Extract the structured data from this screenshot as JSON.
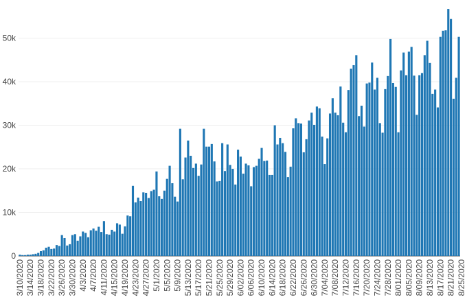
{
  "chart_data": {
    "type": "bar",
    "title": "",
    "xlabel": "",
    "ylabel": "",
    "start_date": "3/10/2020",
    "x_tick_labels": [
      "3/10/2020",
      "3/14/2020",
      "3/18/2020",
      "3/22/2020",
      "3/26/2020",
      "3/30/2020",
      "4/3/2020",
      "4/7/2020",
      "4/11/2020",
      "4/15/2020",
      "4/19/2020",
      "4/23/2020",
      "4/27/2020",
      "5/1/2020",
      "5/5/2020",
      "5/9/2020",
      "5/13/2020",
      "5/17/2020",
      "5/21/2020",
      "5/25/2020",
      "5/29/2020",
      "6/02/2020",
      "6/06/2020",
      "6/10/2020",
      "6/14/2020",
      "6/18/2020",
      "6/22/2020",
      "6/26/2020",
      "6/30/2020",
      "7/04/2020",
      "7/08/2020",
      "7/12/2020",
      "7/16/2020",
      "7/20/2020",
      "7/24/2020",
      "7/28/2020",
      "8/01/2020",
      "8/05/2020",
      "8/09/2020",
      "8/13/2020",
      "8/17/2020",
      "8/21/2020",
      "8/25/2020"
    ],
    "y_ticks": [
      0,
      10000,
      20000,
      30000,
      40000,
      50000
    ],
    "y_tick_labels": [
      "0",
      "10k",
      "20k",
      "30k",
      "40k",
      "50k"
    ],
    "ylim": [
      0,
      57500
    ],
    "grid": true,
    "series": [
      {
        "color": "#1f77b4",
        "values": [
          300,
          200,
          200,
          300,
          300,
          400,
          500,
          700,
          1100,
          1300,
          1900,
          2100,
          1600,
          1700,
          2500,
          2300,
          4800,
          4100,
          2400,
          2700,
          4800,
          5000,
          3500,
          4500,
          5600,
          5300,
          4300,
          5900,
          6300,
          5800,
          6700,
          5500,
          8000,
          5000,
          4900,
          6000,
          5600,
          7500,
          7200,
          5100,
          6800,
          9300,
          9100,
          16100,
          12300,
          13400,
          12600,
          14600,
          14500,
          13300,
          14900,
          15200,
          19400,
          13700,
          13100,
          15000,
          17700,
          20700,
          16700,
          13600,
          12500,
          29200,
          17600,
          22600,
          26500,
          23000,
          20200,
          21200,
          18400,
          21000,
          29200,
          25100,
          25100,
          25700,
          21700,
          17100,
          17200,
          25900,
          19500,
          25600,
          20900,
          20000,
          16400,
          24400,
          22800,
          18900,
          21200,
          20800,
          16000,
          20400,
          20700,
          22300,
          24800,
          21800,
          21900,
          18600,
          18600,
          30000,
          25600,
          27100,
          25900,
          23900,
          18100,
          20500,
          29300,
          31600,
          30500,
          30400,
          23800,
          26800,
          31100,
          32900,
          30100,
          34300,
          33900,
          27400,
          21100,
          27000,
          32700,
          36200,
          32900,
          32300,
          38900,
          30600,
          28400,
          38100,
          43000,
          43800,
          46100,
          32100,
          34500,
          29700,
          39600,
          39800,
          44400,
          38200,
          40900,
          30500,
          28300,
          38300,
          41300,
          49800,
          39700,
          38800,
          28400,
          42600,
          46700,
          41500,
          46900,
          48000,
          41400,
          32400,
          41500,
          42000,
          46100,
          49400,
          44300,
          37200,
          38200,
          34100,
          50300,
          51700,
          51800,
          56700,
          54400,
          36100,
          40900,
          50300
        ]
      }
    ]
  }
}
